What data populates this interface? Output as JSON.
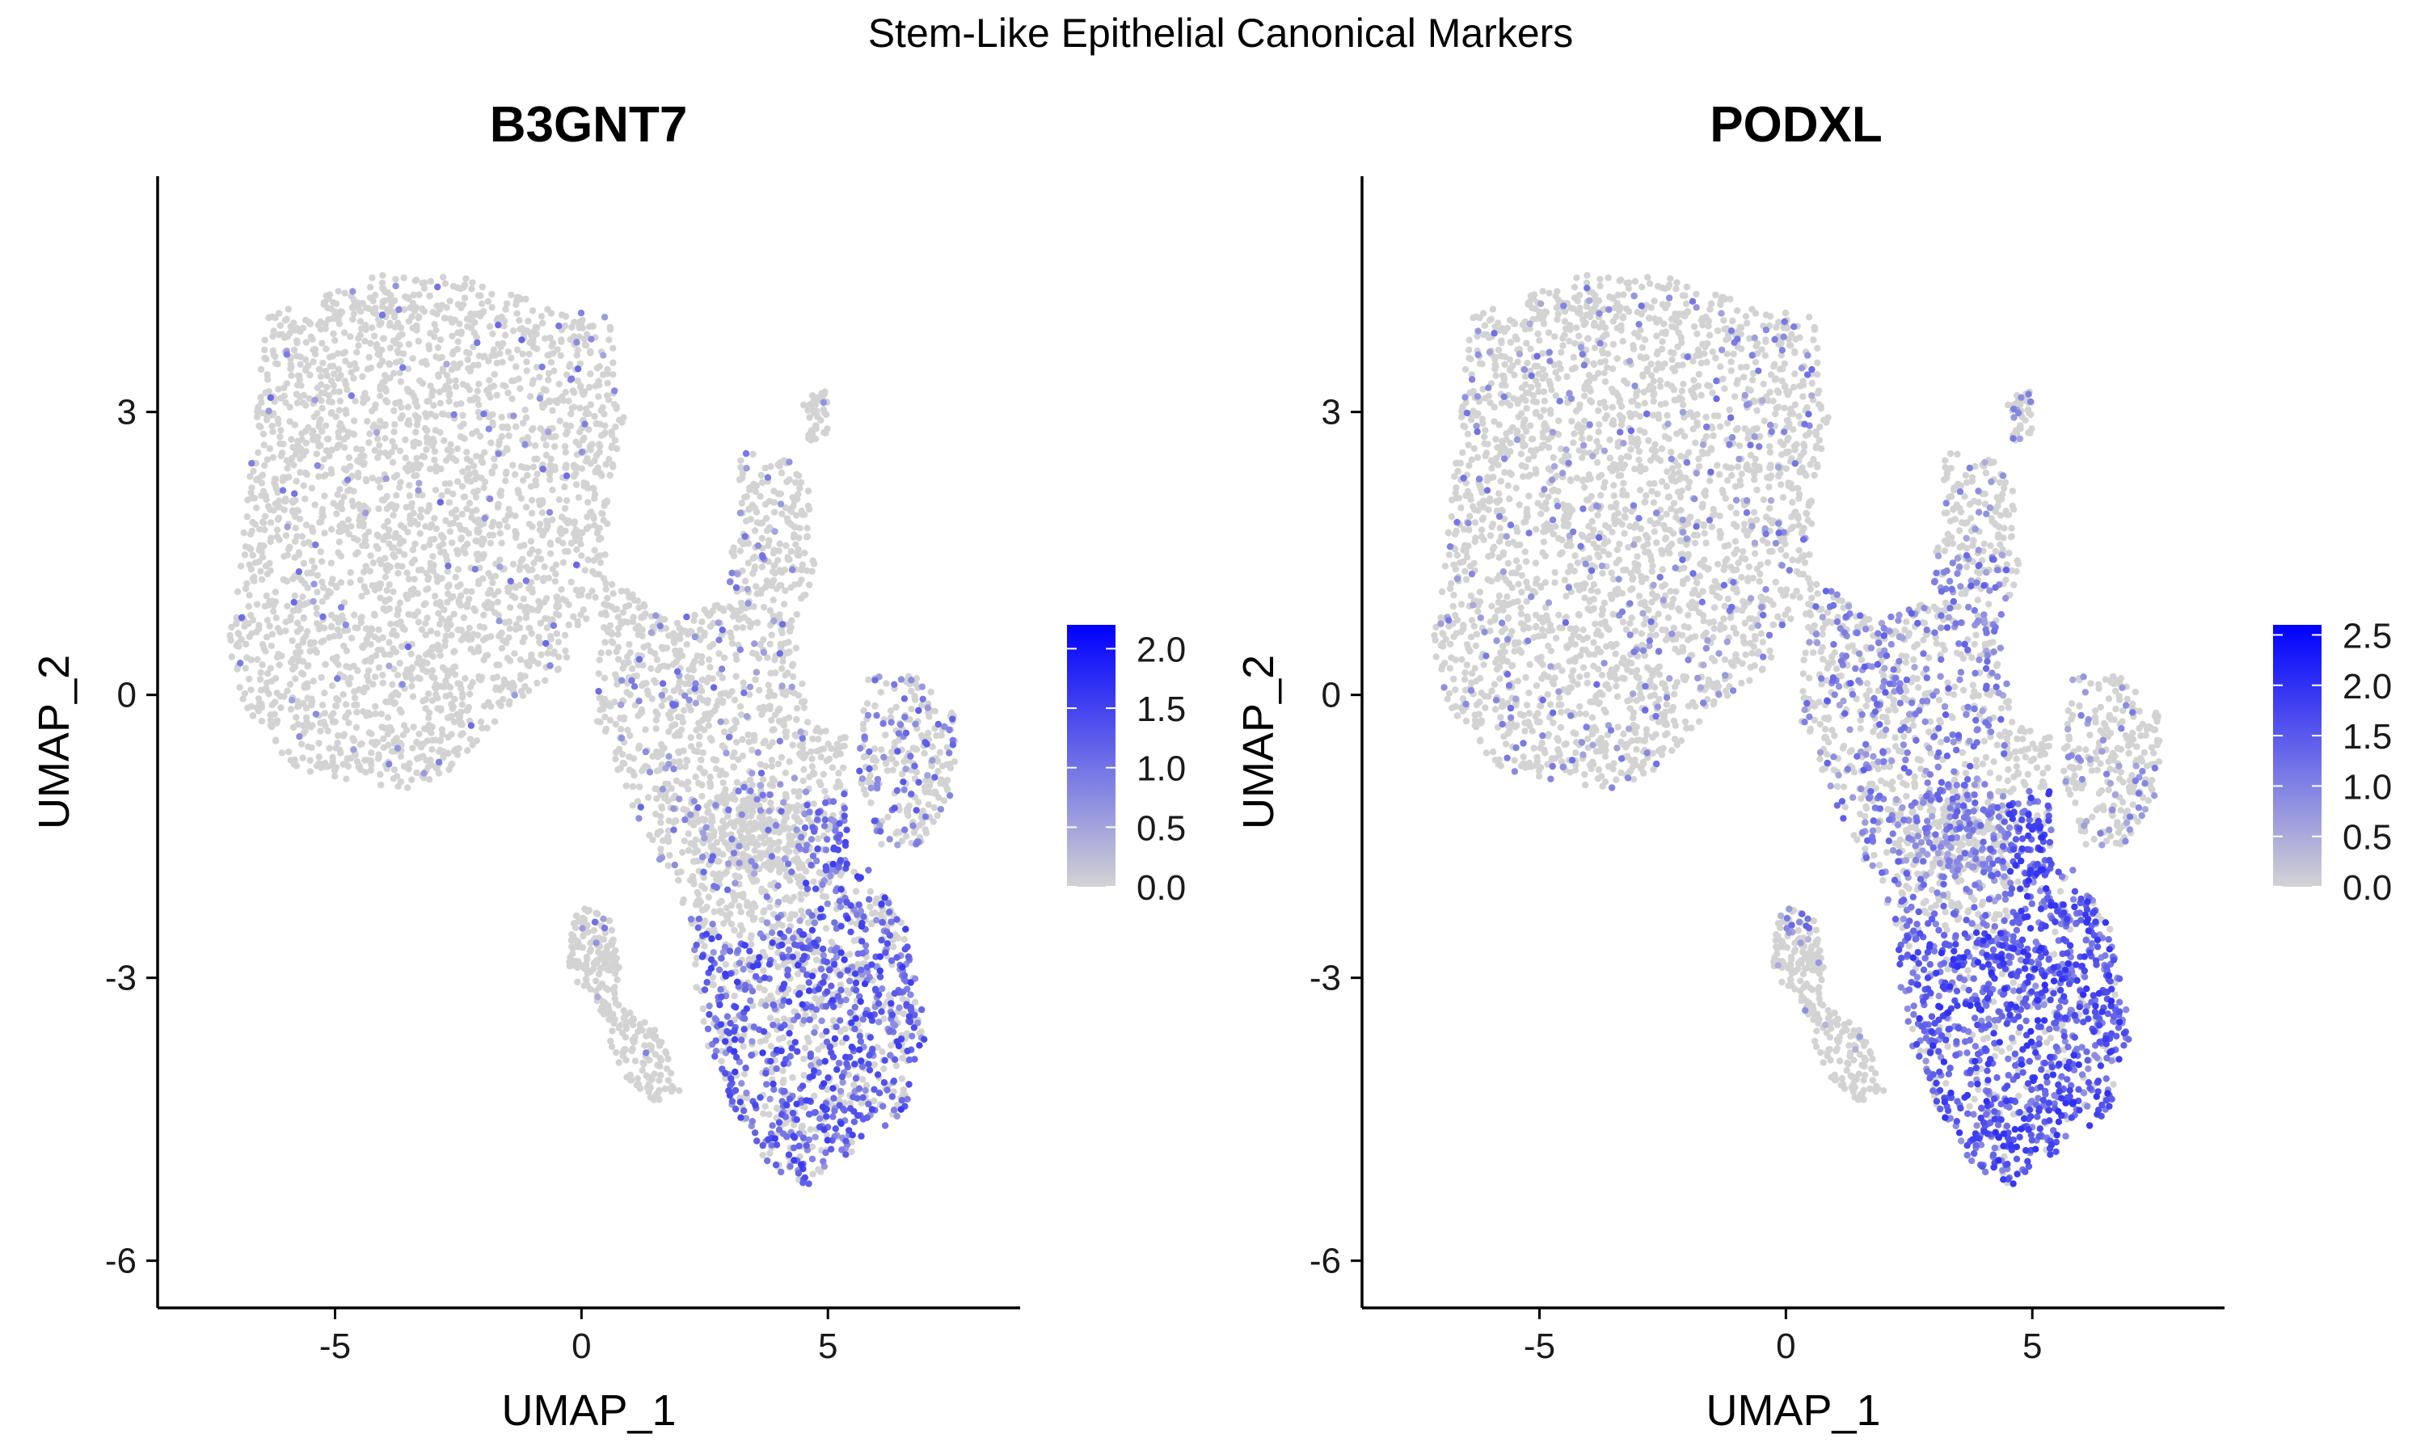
{
  "figure": {
    "title": "Stem-Like Epithelial Canonical Markers"
  },
  "chart_data": [
    {
      "type": "scatter",
      "title": "B3GNT7",
      "xlabel": "UMAP_1",
      "ylabel": "UMAP_2",
      "xlim": [
        -8.6,
        8.9
      ],
      "ylim": [
        -6.5,
        5.5
      ],
      "xticks": [
        -5,
        0,
        5
      ],
      "xtick_labels": [
        "-5",
        "0",
        "5"
      ],
      "yticks": [
        3,
        0,
        -3,
        -6
      ],
      "ytick_labels": [
        "3",
        "0",
        "-3",
        "-6"
      ],
      "grid": false,
      "legend": "right",
      "color_scale": {
        "low_color": "#d3d3d3",
        "high_color": "#0000ff",
        "min": 0,
        "max": 2.2,
        "ticks": [
          0.0,
          0.5,
          1.0,
          1.5,
          2.0
        ],
        "tick_labels": [
          "0.0",
          "0.5",
          "1.0",
          "1.5",
          "2.0"
        ]
      },
      "expression_regions": [
        {
          "region": "upper-left cluster",
          "x_range": [
            -7.2,
            0.8
          ],
          "y_range": [
            -1.0,
            4.4
          ],
          "approx_fraction_expressing": 0.03,
          "typical_expression": 0.8
        },
        {
          "region": "middle bridge",
          "x_range": [
            0.0,
            4.5
          ],
          "y_range": [
            -2.5,
            1.5
          ],
          "approx_fraction_expressing": 0.12,
          "typical_expression": 0.8
        },
        {
          "region": "upper-right arm",
          "x_range": [
            3.0,
            5.5
          ],
          "y_range": [
            0.5,
            3.2
          ],
          "approx_fraction_expressing": 0.08,
          "typical_expression": 0.7
        },
        {
          "region": "right lobe",
          "x_range": [
            5.5,
            7.8
          ],
          "y_range": [
            -1.6,
            0.3
          ],
          "approx_fraction_expressing": 0.25,
          "typical_expression": 0.9
        },
        {
          "region": "lower-right cluster",
          "x_range": [
            2.2,
            7.0
          ],
          "y_range": [
            -5.2,
            -1.0
          ],
          "approx_fraction_expressing": 0.55,
          "typical_expression": 1.1
        },
        {
          "region": "lower-left tail",
          "x_range": [
            -0.5,
            2.0
          ],
          "y_range": [
            -4.2,
            -2.0
          ],
          "approx_fraction_expressing": 0.02,
          "typical_expression": 0.6
        }
      ]
    },
    {
      "type": "scatter",
      "title": "PODXL",
      "xlabel": "UMAP_1",
      "ylabel": "UMAP_2",
      "xlim": [
        -8.6,
        8.9
      ],
      "ylim": [
        -6.5,
        5.5
      ],
      "xticks": [
        -5,
        0,
        5
      ],
      "xtick_labels": [
        "-5",
        "0",
        "5"
      ],
      "yticks": [
        3,
        0,
        -3,
        -6
      ],
      "ytick_labels": [
        "3",
        "0",
        "-3",
        "-6"
      ],
      "grid": false,
      "legend": "right",
      "color_scale": {
        "low_color": "#d3d3d3",
        "high_color": "#0000ff",
        "min": 0,
        "max": 2.6,
        "ticks": [
          0.0,
          0.5,
          1.0,
          1.5,
          2.0,
          2.5
        ],
        "tick_labels": [
          "0.0",
          "0.5",
          "1.0",
          "1.5",
          "2.0",
          "2.5"
        ]
      },
      "expression_regions": [
        {
          "region": "upper-left cluster",
          "x_range": [
            -7.2,
            0.8
          ],
          "y_range": [
            -1.0,
            4.4
          ],
          "approx_fraction_expressing": 0.1,
          "typical_expression": 0.9
        },
        {
          "region": "middle bridge",
          "x_range": [
            0.0,
            4.5
          ],
          "y_range": [
            -2.5,
            1.5
          ],
          "approx_fraction_expressing": 0.45,
          "typical_expression": 1.0
        },
        {
          "region": "upper-right arm",
          "x_range": [
            3.0,
            5.5
          ],
          "y_range": [
            0.5,
            3.2
          ],
          "approx_fraction_expressing": 0.12,
          "typical_expression": 0.8
        },
        {
          "region": "right lobe",
          "x_range": [
            5.5,
            7.8
          ],
          "y_range": [
            -1.6,
            0.3
          ],
          "approx_fraction_expressing": 0.15,
          "typical_expression": 0.8
        },
        {
          "region": "lower-right cluster",
          "x_range": [
            2.2,
            7.0
          ],
          "y_range": [
            -5.2,
            -1.0
          ],
          "approx_fraction_expressing": 0.85,
          "typical_expression": 1.4
        },
        {
          "region": "lower-left tail",
          "x_range": [
            -0.5,
            2.0
          ],
          "y_range": [
            -4.2,
            -2.0
          ],
          "approx_fraction_expressing": 0.03,
          "typical_expression": 0.6
        }
      ]
    }
  ]
}
